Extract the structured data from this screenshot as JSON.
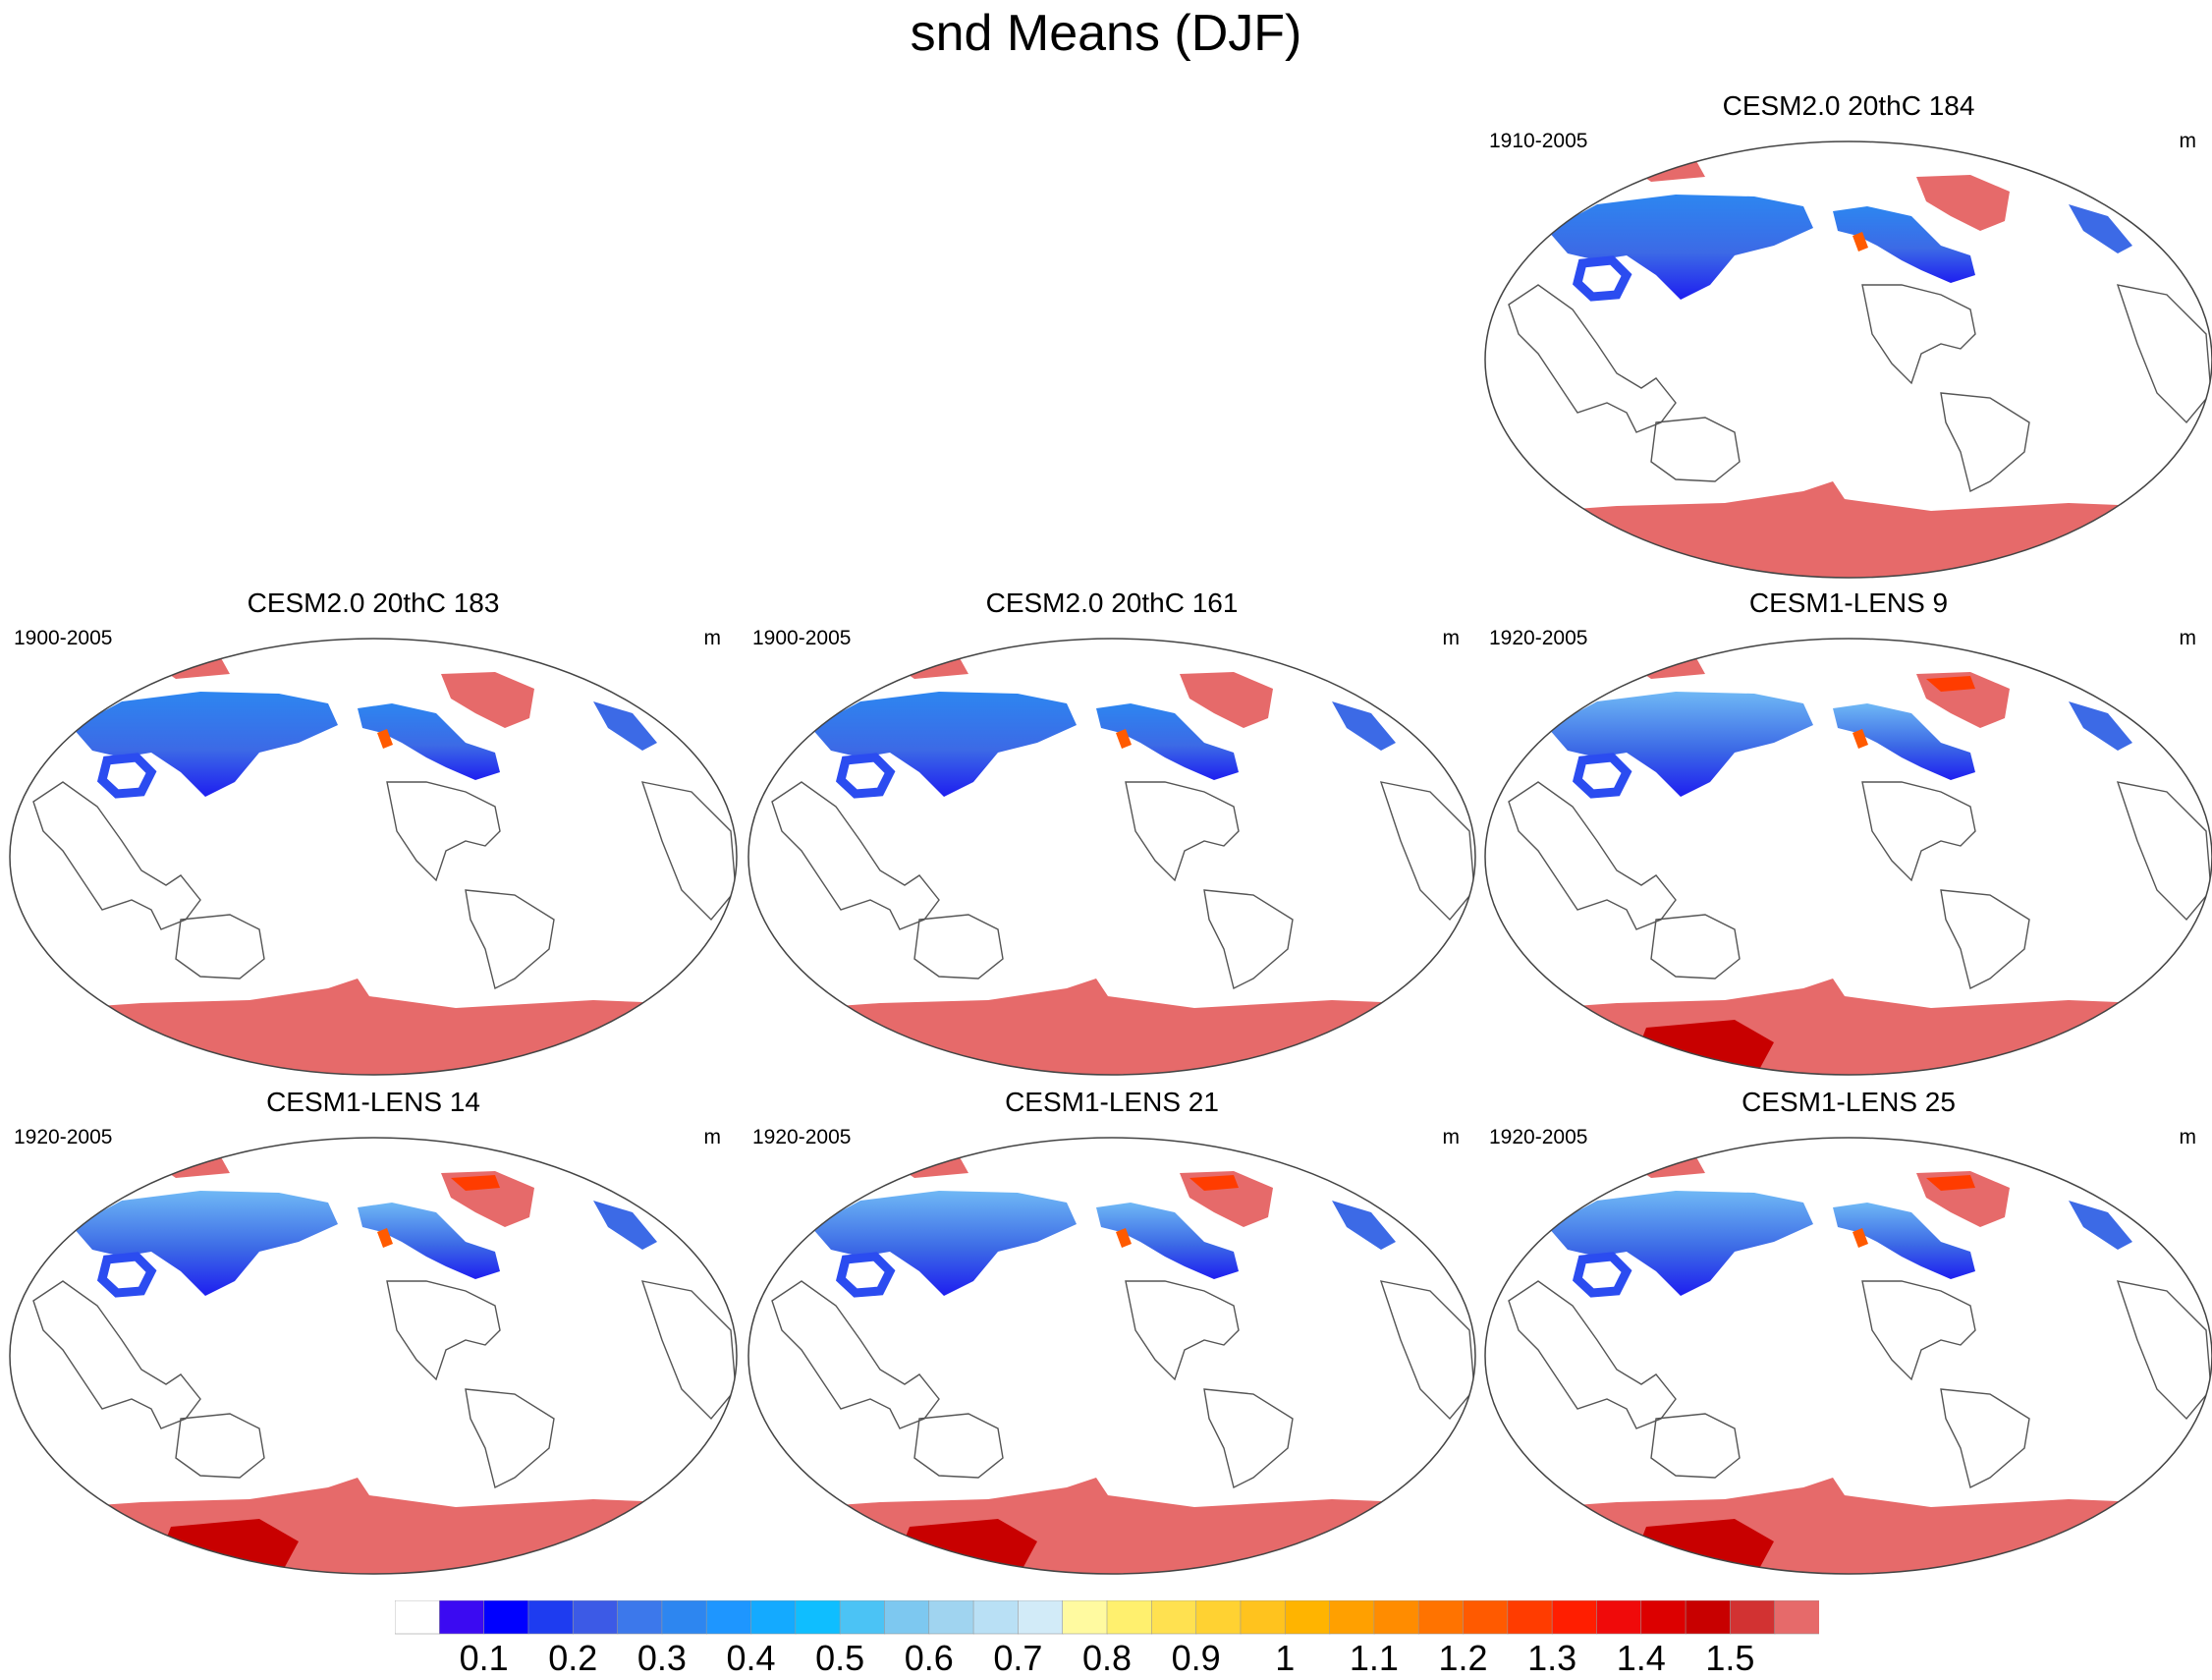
{
  "title": "snd Means (DJF)",
  "panels": [
    {
      "title": "CESM2.0 20thC 184",
      "period": "1910-2005",
      "unit": "m"
    },
    {
      "title": "CESM2.0 20thC 183",
      "period": "1900-2005",
      "unit": "m"
    },
    {
      "title": "CESM2.0 20thC 161",
      "period": "1900-2005",
      "unit": "m"
    },
    {
      "title": "CESM1-LENS 9",
      "period": "1920-2005",
      "unit": "m"
    },
    {
      "title": "CESM1-LENS 14",
      "period": "1920-2005",
      "unit": "m"
    },
    {
      "title": "CESM1-LENS 21",
      "period": "1920-2005",
      "unit": "m"
    },
    {
      "title": "CESM1-LENS 25",
      "period": "1920-2005",
      "unit": "m"
    }
  ],
  "colorbar": {
    "labels": [
      "0.1",
      "0.2",
      "0.3",
      "0.4",
      "0.5",
      "0.6",
      "0.7",
      "0.8",
      "0.9",
      "1",
      "1.1",
      "1.2",
      "1.3",
      "1.4",
      "1.5"
    ],
    "colors": [
      "#ffffff",
      "#3b0af2",
      "#0000ff",
      "#1e3cf0",
      "#3c5ae6",
      "#3c78eb",
      "#2d86f0",
      "#1e96ff",
      "#14aaff",
      "#0fbeff",
      "#4bc3f5",
      "#7dc8f0",
      "#a0d4f0",
      "#b9e0f5",
      "#d2ebf8",
      "#fffaa0",
      "#fff06e",
      "#ffe150",
      "#ffd232",
      "#ffc31e",
      "#ffb400",
      "#ffa000",
      "#ff8c00",
      "#ff7300",
      "#ff5a00",
      "#ff3c00",
      "#ff1e00",
      "#f00a0a",
      "#dc0000",
      "#c80000",
      "#d23232",
      "#e66a6a"
    ]
  }
}
